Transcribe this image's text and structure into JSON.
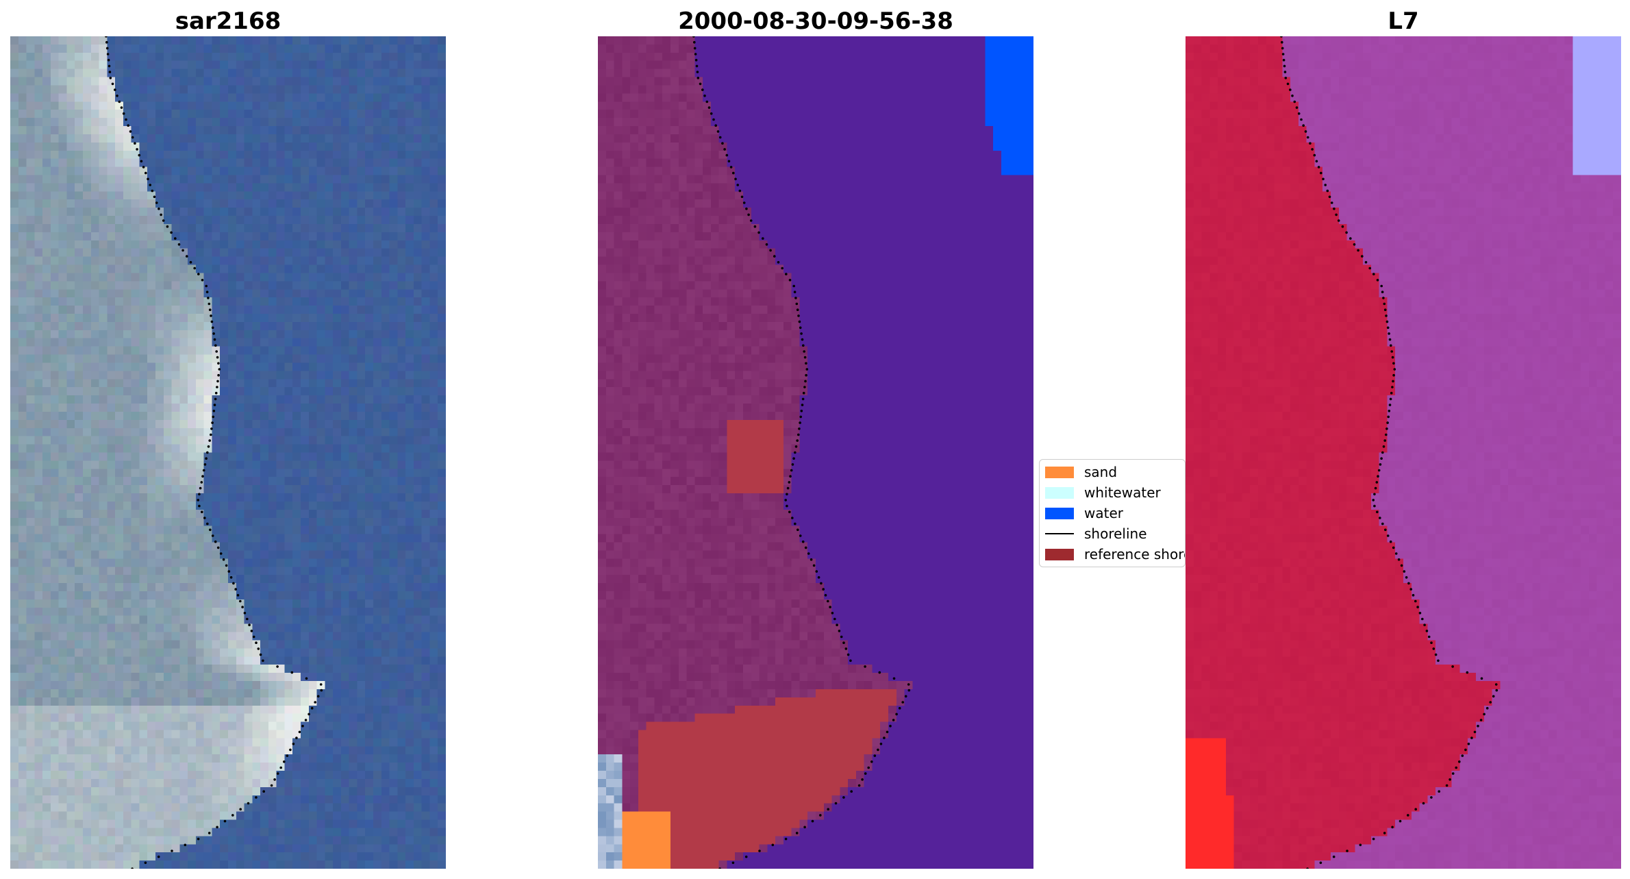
{
  "panels": [
    {
      "title": "sar2168"
    },
    {
      "title": "2000-08-30-09-56-38"
    },
    {
      "title": "L7"
    }
  ],
  "legend": {
    "items": [
      {
        "label": "sand",
        "color": "#ff8c3a",
        "kind": "patch"
      },
      {
        "label": "whitewater",
        "color": "#ccffff",
        "kind": "patch"
      },
      {
        "label": "water",
        "color": "#0055ff",
        "kind": "patch"
      },
      {
        "label": "shoreline",
        "color": "#000000",
        "kind": "line"
      },
      {
        "label": "reference shoreline",
        "color": "#9e2a2f",
        "kind": "patch"
      }
    ]
  },
  "colors": {
    "rgb_water": "#3f5f99",
    "rgb_land": "#7d94a6",
    "rgb_whitewater": "#e8ecea",
    "class_water": "#55229a",
    "class_land": "#7b2868",
    "class_reference": "#b23a48",
    "class_blue": "#0055ff",
    "class_sand": "#ff8c3a",
    "index_land": "#c41c48",
    "index_water": "#a145a5",
    "index_lightblue": "#a9a9ff",
    "index_red": "#ff2a2a",
    "shoreline": "#000000"
  }
}
